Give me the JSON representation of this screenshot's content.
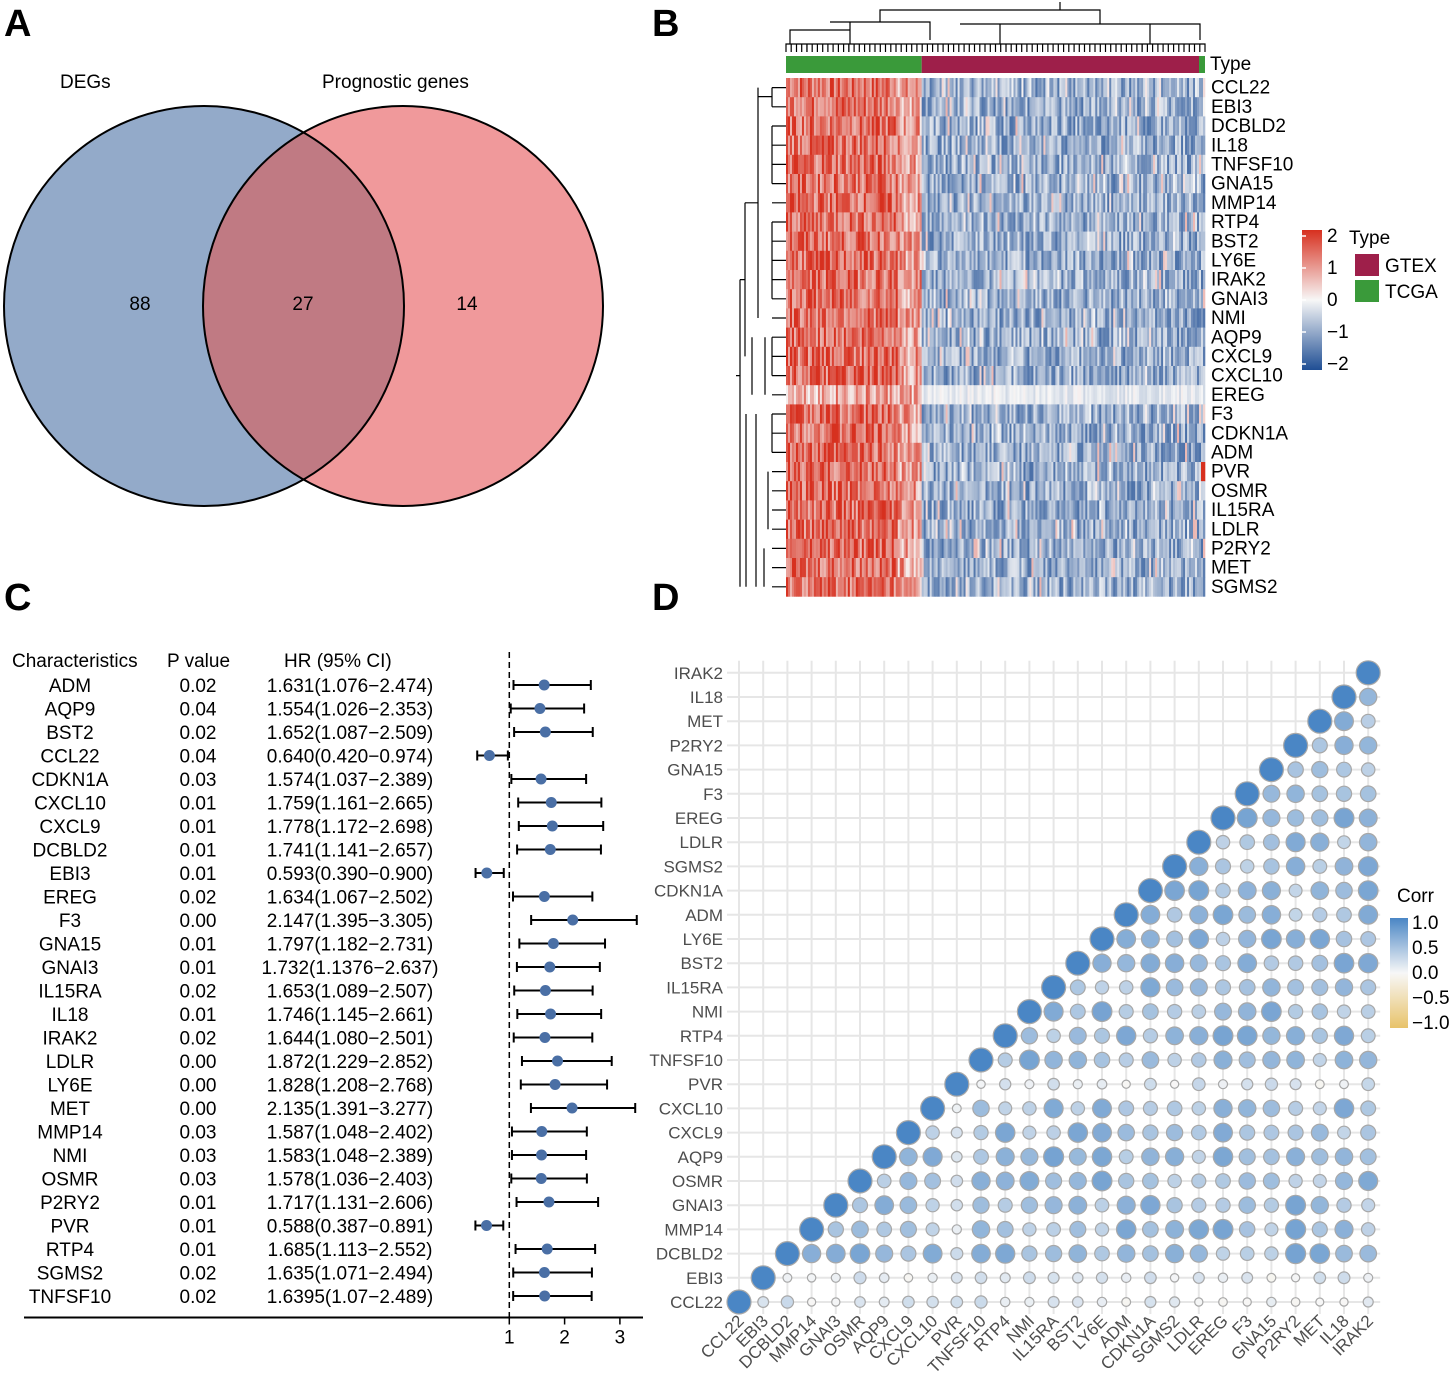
{
  "panels": {
    "a": "A",
    "b": "B",
    "c": "C",
    "d": "D"
  },
  "chart_data": [
    {
      "type": "venn",
      "panel": "A",
      "sets": [
        {
          "name": "DEGs",
          "unique": 88,
          "color": "#93aac9"
        },
        {
          "name": "Prognostic genes",
          "unique": 14,
          "color": "#f0999b"
        }
      ],
      "intersection": 27,
      "overlap_color": "#c07a83"
    },
    {
      "type": "heatmap",
      "panel": "B",
      "annotation_label": "Type",
      "genes": [
        "CCL22",
        "EBI3",
        "DCBLD2",
        "IL18",
        "TNFSF10",
        "GNA15",
        "MMP14",
        "RTP4",
        "BST2",
        "LY6E",
        "IRAK2",
        "GNAI3",
        "NMI",
        "AQP9",
        "CXCL9",
        "CXCL10",
        "EREG",
        "F3",
        "CDKN1A",
        "ADM",
        "PVR",
        "OSMR",
        "IL15RA",
        "LDLR",
        "P2RY2",
        "MET",
        "SGMS2"
      ],
      "color_scale": {
        "ticks": [
          "2",
          "1",
          "0",
          "−1",
          "−2"
        ],
        "high": "#d7301f",
        "mid": "#f7f7f7",
        "low": "#1f4e94"
      },
      "groups_legend_title": "Type",
      "groups": [
        {
          "name": "GTEX",
          "color": "#9e1f4a"
        },
        {
          "name": "TCGA",
          "color": "#3a9a3a"
        }
      ]
    },
    {
      "type": "forest",
      "panel": "C",
      "headers": {
        "characteristics": "Characteristics",
        "pvalue": "P value",
        "hr": "HR (95% CI)"
      },
      "x_ticks": [
        1,
        2,
        3
      ],
      "xlim": [
        0.0,
        3.25
      ],
      "rows": [
        {
          "gene": "ADM",
          "p": "0.02",
          "hr_text": "1.631(1.076−2.474)",
          "hr": 1.631,
          "lo": 1.076,
          "hi": 2.474
        },
        {
          "gene": "AQP9",
          "p": "0.04",
          "hr_text": "1.554(1.026−2.353)",
          "hr": 1.554,
          "lo": 1.026,
          "hi": 2.353
        },
        {
          "gene": "BST2",
          "p": "0.02",
          "hr_text": "1.652(1.087−2.509)",
          "hr": 1.652,
          "lo": 1.087,
          "hi": 2.509
        },
        {
          "gene": "CCL22",
          "p": "0.04",
          "hr_text": "0.640(0.420−0.974)",
          "hr": 0.64,
          "lo": 0.42,
          "hi": 0.974
        },
        {
          "gene": "CDKN1A",
          "p": "0.03",
          "hr_text": "1.574(1.037−2.389)",
          "hr": 1.574,
          "lo": 1.037,
          "hi": 2.389
        },
        {
          "gene": "CXCL10",
          "p": "0.01",
          "hr_text": "1.759(1.161−2.665)",
          "hr": 1.759,
          "lo": 1.161,
          "hi": 2.665
        },
        {
          "gene": "CXCL9",
          "p": "0.01",
          "hr_text": "1.778(1.172−2.698)",
          "hr": 1.778,
          "lo": 1.172,
          "hi": 2.698
        },
        {
          "gene": "DCBLD2",
          "p": "0.01",
          "hr_text": "1.741(1.141−2.657)",
          "hr": 1.741,
          "lo": 1.141,
          "hi": 2.657
        },
        {
          "gene": "EBI3",
          "p": "0.01",
          "hr_text": "0.593(0.390−0.900)",
          "hr": 0.593,
          "lo": 0.39,
          "hi": 0.9
        },
        {
          "gene": "EREG",
          "p": "0.02",
          "hr_text": "1.634(1.067−2.502)",
          "hr": 1.634,
          "lo": 1.067,
          "hi": 2.502
        },
        {
          "gene": "F3",
          "p": "0.00",
          "hr_text": "2.147(1.395−3.305)",
          "hr": 2.147,
          "lo": 1.395,
          "hi": 3.305
        },
        {
          "gene": "GNA15",
          "p": "0.01",
          "hr_text": "1.797(1.182−2.731)",
          "hr": 1.797,
          "lo": 1.182,
          "hi": 2.731
        },
        {
          "gene": "GNAI3",
          "p": "0.01",
          "hr_text": "1.732(1.1376−2.637)",
          "hr": 1.732,
          "lo": 1.1376,
          "hi": 2.637
        },
        {
          "gene": "IL15RA",
          "p": "0.02",
          "hr_text": "1.653(1.089−2.507)",
          "hr": 1.653,
          "lo": 1.089,
          "hi": 2.507
        },
        {
          "gene": "IL18",
          "p": "0.01",
          "hr_text": "1.746(1.145−2.661)",
          "hr": 1.746,
          "lo": 1.145,
          "hi": 2.661
        },
        {
          "gene": "IRAK2",
          "p": "0.02",
          "hr_text": "1.644(1.080−2.501)",
          "hr": 1.644,
          "lo": 1.08,
          "hi": 2.501
        },
        {
          "gene": "LDLR",
          "p": "0.00",
          "hr_text": "1.872(1.229−2.852)",
          "hr": 1.872,
          "lo": 1.229,
          "hi": 2.852
        },
        {
          "gene": "LY6E",
          "p": "0.00",
          "hr_text": "1.828(1.208−2.768)",
          "hr": 1.828,
          "lo": 1.208,
          "hi": 2.768
        },
        {
          "gene": "MET",
          "p": "0.00",
          "hr_text": "2.135(1.391−3.277)",
          "hr": 2.135,
          "lo": 1.391,
          "hi": 3.277
        },
        {
          "gene": "MMP14",
          "p": "0.03",
          "hr_text": "1.587(1.048−2.402)",
          "hr": 1.587,
          "lo": 1.048,
          "hi": 2.402
        },
        {
          "gene": "NMI",
          "p": "0.03",
          "hr_text": "1.583(1.048−2.389)",
          "hr": 1.583,
          "lo": 1.048,
          "hi": 2.389
        },
        {
          "gene": "OSMR",
          "p": "0.03",
          "hr_text": "1.578(1.036−2.403)",
          "hr": 1.578,
          "lo": 1.036,
          "hi": 2.403
        },
        {
          "gene": "P2RY2",
          "p": "0.01",
          "hr_text": "1.717(1.131−2.606)",
          "hr": 1.717,
          "lo": 1.131,
          "hi": 2.606
        },
        {
          "gene": "PVR",
          "p": "0.01",
          "hr_text": "0.588(0.387−0.891)",
          "hr": 0.588,
          "lo": 0.387,
          "hi": 0.891
        },
        {
          "gene": "RTP4",
          "p": "0.01",
          "hr_text": "1.685(1.113−2.552)",
          "hr": 1.685,
          "lo": 1.113,
          "hi": 2.552
        },
        {
          "gene": "SGMS2",
          "p": "0.02",
          "hr_text": "1.635(1.071−2.494)",
          "hr": 1.635,
          "lo": 1.071,
          "hi": 2.494
        },
        {
          "gene": "TNFSF10",
          "p": "0.02",
          "hr_text": "1.6395(1.07−2.489)",
          "hr": 1.6395,
          "lo": 1.07,
          "hi": 2.489
        }
      ]
    },
    {
      "type": "correlation",
      "panel": "D",
      "genes": [
        "CCL22",
        "EBI3",
        "DCBLD2",
        "MMP14",
        "GNAI3",
        "OSMR",
        "AQP9",
        "CXCL9",
        "CXCL10",
        "PVR",
        "TNFSF10",
        "RTP4",
        "NMI",
        "IL15RA",
        "BST2",
        "LY6E",
        "ADM",
        "CDKN1A",
        "SGMS2",
        "LDLR",
        "EREG",
        "F3",
        "GNA15",
        "P2RY2",
        "MET",
        "IL18",
        "IRAK2"
      ],
      "legend_title": "Corr",
      "legend_ticks": [
        "1.0",
        "0.5",
        "0.0",
        "−0.5",
        "−1.0"
      ],
      "colors": {
        "pos": "#4a86c5",
        "zero": "#f7f7f7",
        "neg": "#e8c36a"
      }
    }
  ]
}
